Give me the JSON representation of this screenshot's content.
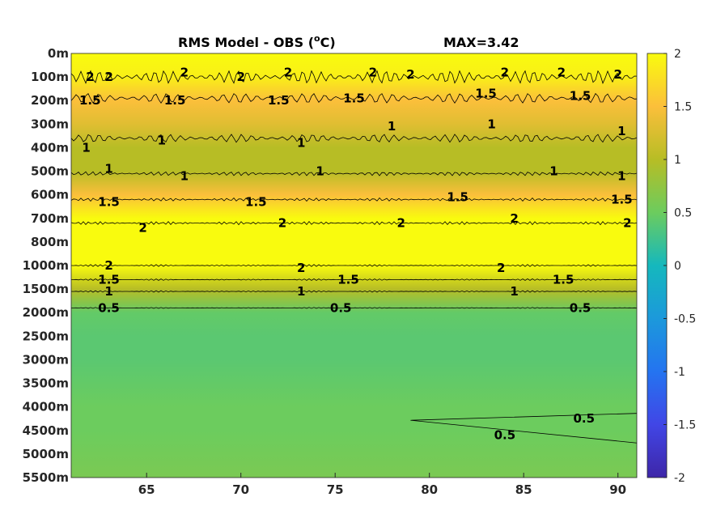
{
  "chart_data": {
    "type": "heatmap",
    "title": "RMS Model - OBS (",
    "title_sup": "o",
    "title_unit": "C)",
    "max_label": "MAX=3.42",
    "x_ticks": [
      65,
      70,
      75,
      80,
      85,
      90
    ],
    "xlim": [
      61,
      91
    ],
    "y_ticks": [
      "0m",
      "100m",
      "200m",
      "300m",
      "400m",
      "500m",
      "600m",
      "700m",
      "800m",
      "1000m",
      "1500m",
      "2000m",
      "2500m",
      "3000m",
      "3500m",
      "4000m",
      "4500m",
      "5000m",
      "5500m"
    ],
    "y_reversed": true,
    "colorbar": {
      "ticks": [
        "2",
        "1.5",
        "1",
        "0.5",
        "0",
        "-0.5",
        "-1",
        "-1.5",
        "-2"
      ],
      "range": [
        -2,
        2
      ],
      "colormap": "parula"
    },
    "depth_profile": [
      {
        "depth": "0m",
        "value": 2.0
      },
      {
        "depth": "100m",
        "value": 1.9
      },
      {
        "depth": "200m",
        "value": 1.5
      },
      {
        "depth": "300m",
        "value": 1.3
      },
      {
        "depth": "400m",
        "value": 1.0
      },
      {
        "depth": "500m",
        "value": 1.0
      },
      {
        "depth": "600m",
        "value": 1.5
      },
      {
        "depth": "700m",
        "value": 2.0
      },
      {
        "depth": "800m",
        "value": 2.0
      },
      {
        "depth": "1000m",
        "value": 2.0
      },
      {
        "depth": "1500m",
        "value": 1.0
      },
      {
        "depth": "2000m",
        "value": 0.45
      },
      {
        "depth": "2500m",
        "value": 0.4
      },
      {
        "depth": "3000m",
        "value": 0.4
      },
      {
        "depth": "3500m",
        "value": 0.45
      },
      {
        "depth": "4000m",
        "value": 0.5
      },
      {
        "depth": "4500m",
        "value": 0.5
      },
      {
        "depth": "5000m",
        "value": 0.55
      },
      {
        "depth": "5500m",
        "value": 0.6
      }
    ],
    "contour_labels": [
      {
        "text": "2",
        "lon": 62,
        "depth_index": 1.0
      },
      {
        "text": "2",
        "lon": 63,
        "depth_index": 1.0
      },
      {
        "text": "2",
        "lon": 67,
        "depth_index": 0.8
      },
      {
        "text": "2",
        "lon": 70,
        "depth_index": 1.0
      },
      {
        "text": "2",
        "lon": 72.5,
        "depth_index": 0.8
      },
      {
        "text": "2",
        "lon": 77,
        "depth_index": 0.8
      },
      {
        "text": "2",
        "lon": 79,
        "depth_index": 0.9
      },
      {
        "text": "2",
        "lon": 84,
        "depth_index": 0.8
      },
      {
        "text": "2",
        "lon": 87,
        "depth_index": 0.8
      },
      {
        "text": "2",
        "lon": 90,
        "depth_index": 0.9
      },
      {
        "text": "1.5",
        "lon": 62,
        "depth_index": 2.0
      },
      {
        "text": "1.5",
        "lon": 66.5,
        "depth_index": 2.0
      },
      {
        "text": "1.5",
        "lon": 72,
        "depth_index": 2.0
      },
      {
        "text": "1.5",
        "lon": 76,
        "depth_index": 1.9
      },
      {
        "text": "1.5",
        "lon": 83,
        "depth_index": 1.7
      },
      {
        "text": "1.5",
        "lon": 88,
        "depth_index": 1.8
      },
      {
        "text": "1",
        "lon": 61.8,
        "depth_index": 4.0
      },
      {
        "text": "1",
        "lon": 63,
        "depth_index": 4.9
      },
      {
        "text": "1",
        "lon": 65.8,
        "depth_index": 3.7
      },
      {
        "text": "1",
        "lon": 67,
        "depth_index": 5.2
      },
      {
        "text": "1",
        "lon": 73.2,
        "depth_index": 3.8
      },
      {
        "text": "1",
        "lon": 74.2,
        "depth_index": 5.0
      },
      {
        "text": "1",
        "lon": 78,
        "depth_index": 3.1
      },
      {
        "text": "1",
        "lon": 83.3,
        "depth_index": 3.0
      },
      {
        "text": "1",
        "lon": 86.6,
        "depth_index": 5.0
      },
      {
        "text": "1",
        "lon": 90.2,
        "depth_index": 3.3
      },
      {
        "text": "1",
        "lon": 90.2,
        "depth_index": 5.2
      },
      {
        "text": "1.5",
        "lon": 63,
        "depth_index": 6.3
      },
      {
        "text": "1.5",
        "lon": 70.8,
        "depth_index": 6.3
      },
      {
        "text": "1.5",
        "lon": 81.5,
        "depth_index": 6.1
      },
      {
        "text": "1.5",
        "lon": 90.2,
        "depth_index": 6.2
      },
      {
        "text": "2",
        "lon": 64.8,
        "depth_index": 7.4
      },
      {
        "text": "2",
        "lon": 72.2,
        "depth_index": 7.2
      },
      {
        "text": "2",
        "lon": 78.5,
        "depth_index": 7.2
      },
      {
        "text": "2",
        "lon": 84.5,
        "depth_index": 7.0
      },
      {
        "text": "2",
        "lon": 90.5,
        "depth_index": 7.2
      },
      {
        "text": "2",
        "lon": 63,
        "depth_index": 9.0
      },
      {
        "text": "2",
        "lon": 73.2,
        "depth_index": 9.1
      },
      {
        "text": "2",
        "lon": 83.8,
        "depth_index": 9.1
      },
      {
        "text": "1.5",
        "lon": 63,
        "depth_index": 9.6
      },
      {
        "text": "1.5",
        "lon": 75.7,
        "depth_index": 9.6
      },
      {
        "text": "1.5",
        "lon": 87.1,
        "depth_index": 9.6
      },
      {
        "text": "1",
        "lon": 63,
        "depth_index": 10.1
      },
      {
        "text": "1",
        "lon": 73.2,
        "depth_index": 10.1
      },
      {
        "text": "1",
        "lon": 84.5,
        "depth_index": 10.1
      },
      {
        "text": "0.5",
        "lon": 63,
        "depth_index": 10.8
      },
      {
        "text": "0.5",
        "lon": 75.3,
        "depth_index": 10.8
      },
      {
        "text": "0.5",
        "lon": 88,
        "depth_index": 10.8
      },
      {
        "text": "0.5",
        "lon": 88.2,
        "depth_index": 15.5
      },
      {
        "text": "0.5",
        "lon": 84,
        "depth_index": 16.2
      }
    ]
  }
}
